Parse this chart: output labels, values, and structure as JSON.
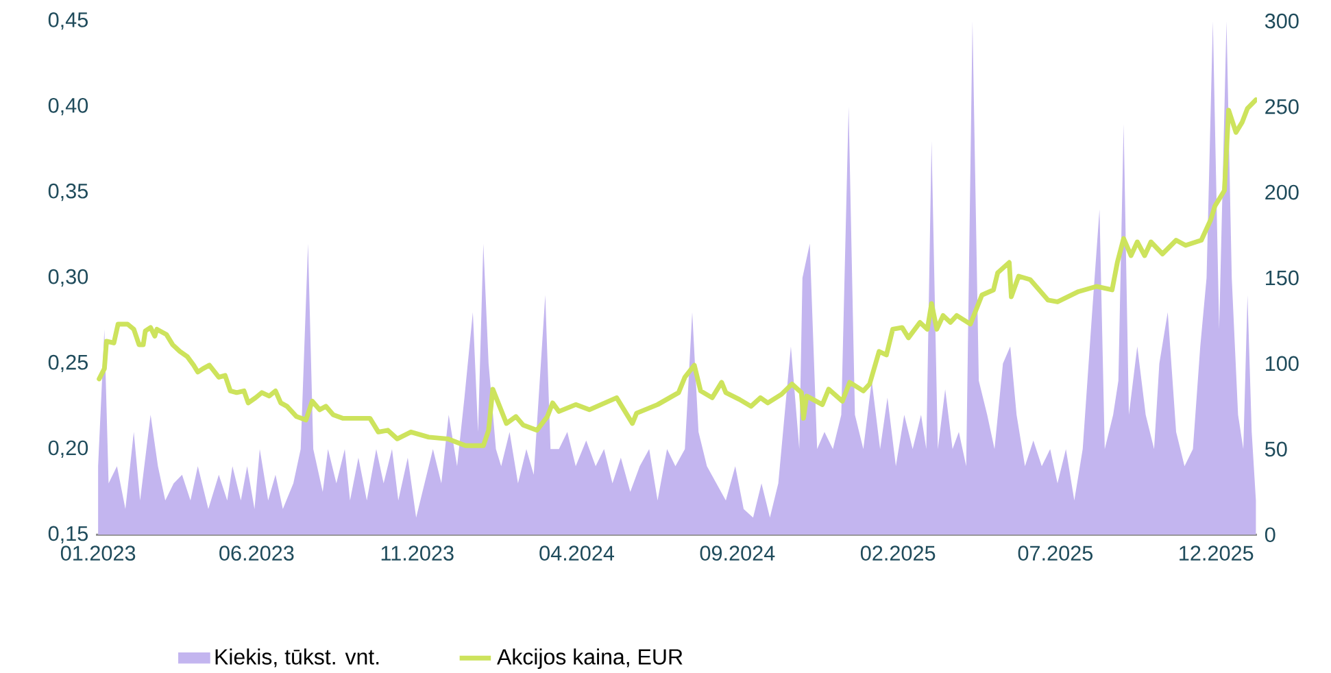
{
  "chart_data": {
    "type": "line",
    "xlim": [
      "2022-12-30",
      "2026-01-09"
    ],
    "xticks": [
      {
        "value": "2023-01-01",
        "label": "01.2023"
      },
      {
        "value": "2023-06-01",
        "label": "06.2023"
      },
      {
        "value": "2023-11-01",
        "label": "11.2023"
      },
      {
        "value": "2024-04-01",
        "label": "04.2024"
      },
      {
        "value": "2024-09-01",
        "label": "09.2024"
      },
      {
        "value": "2025-02-01",
        "label": "02.2025"
      },
      {
        "value": "2025-07-01",
        "label": "07.2025"
      },
      {
        "value": "2025-12-01",
        "label": "12.2025"
      }
    ],
    "ylim": [
      0.15,
      0.45
    ],
    "yticks": [
      {
        "value": 0.15,
        "label": "0,15"
      },
      {
        "value": 0.2,
        "label": "0,20"
      },
      {
        "value": 0.25,
        "label": "0,25"
      },
      {
        "value": 0.3,
        "label": "0,30"
      },
      {
        "value": 0.35,
        "label": "0,35"
      },
      {
        "value": 0.4,
        "label": "0,40"
      },
      {
        "value": 0.45,
        "label": "0,45"
      }
    ],
    "y2lim": [
      0,
      300
    ],
    "y2ticks": [
      0,
      50,
      100,
      150,
      200,
      250,
      300
    ],
    "legend": "bottom",
    "series": [
      {
        "name": "Kiekis, tūkst. vnt.",
        "type": "area",
        "axis": "y",
        "color": "#c3b5ef",
        "x": [
          "2023-01-01",
          "2023-01-07",
          "2023-01-11",
          "2023-01-19",
          "2023-01-27",
          "2023-02-04",
          "2023-02-10",
          "2023-02-20",
          "2023-02-27",
          "2023-03-06",
          "2023-03-14",
          "2023-03-22",
          "2023-03-30",
          "2023-04-06",
          "2023-04-16",
          "2023-04-26",
          "2023-05-04",
          "2023-05-09",
          "2023-05-17",
          "2023-05-23",
          "2023-05-30",
          "2023-06-04",
          "2023-06-12",
          "2023-06-19",
          "2023-06-26",
          "2023-07-06",
          "2023-07-13",
          "2023-07-20",
          "2023-07-25",
          "2023-08-03",
          "2023-08-08",
          "2023-08-16",
          "2023-08-24",
          "2023-08-29",
          "2023-09-06",
          "2023-09-14",
          "2023-09-23",
          "2023-09-30",
          "2023-10-08",
          "2023-10-14",
          "2023-10-23",
          "2023-10-31",
          "2023-11-08",
          "2023-11-16",
          "2023-11-24",
          "2023-12-01",
          "2023-12-09",
          "2023-12-16",
          "2023-12-24",
          "2023-12-29",
          "2024-01-03",
          "2024-01-08",
          "2024-01-15",
          "2024-01-20",
          "2024-01-28",
          "2024-02-05",
          "2024-02-13",
          "2024-02-20",
          "2024-03-02",
          "2024-03-07",
          "2024-03-15",
          "2024-03-23",
          "2024-03-31",
          "2024-04-10",
          "2024-04-19",
          "2024-04-27",
          "2024-05-05",
          "2024-05-13",
          "2024-05-22",
          "2024-05-31",
          "2024-06-09",
          "2024-06-17",
          "2024-06-26",
          "2024-07-04",
          "2024-07-13",
          "2024-07-20",
          "2024-07-26",
          "2024-08-03",
          "2024-08-12",
          "2024-08-21",
          "2024-08-30",
          "2024-09-07",
          "2024-09-16",
          "2024-09-24",
          "2024-10-02",
          "2024-10-10",
          "2024-10-22",
          "2024-10-30",
          "2024-11-02",
          "2024-11-09",
          "2024-11-16",
          "2024-11-23",
          "2024-12-01",
          "2024-12-09",
          "2024-12-16",
          "2024-12-22",
          "2024-12-30",
          "2025-01-07",
          "2025-01-15",
          "2025-01-22",
          "2025-01-30",
          "2025-02-07",
          "2025-02-15",
          "2025-02-23",
          "2025-02-28",
          "2025-03-05",
          "2025-03-11",
          "2025-03-18",
          "2025-03-25",
          "2025-03-31",
          "2025-04-07",
          "2025-04-13",
          "2025-04-19",
          "2025-04-27",
          "2025-05-04",
          "2025-05-12",
          "2025-05-19",
          "2025-05-25",
          "2025-06-02",
          "2025-06-10",
          "2025-06-18",
          "2025-06-26",
          "2025-07-03",
          "2025-07-11",
          "2025-07-19",
          "2025-07-27",
          "2025-08-05",
          "2025-08-12",
          "2025-08-17",
          "2025-08-25",
          "2025-08-30",
          "2025-09-04",
          "2025-09-09",
          "2025-09-17",
          "2025-09-25",
          "2025-10-03",
          "2025-10-08",
          "2025-10-16",
          "2025-10-24",
          "2025-11-01",
          "2025-11-09",
          "2025-11-16",
          "2025-11-22",
          "2025-11-28",
          "2025-12-04",
          "2025-12-11",
          "2025-12-16",
          "2025-12-22",
          "2025-12-27",
          "2025-12-31",
          "2026-01-04",
          "2026-01-08"
        ],
        "values": [
          0.19,
          0.27,
          0.18,
          0.19,
          0.165,
          0.21,
          0.17,
          0.22,
          0.19,
          0.17,
          0.18,
          0.185,
          0.17,
          0.19,
          0.165,
          0.185,
          0.17,
          0.19,
          0.17,
          0.19,
          0.165,
          0.2,
          0.17,
          0.185,
          0.165,
          0.18,
          0.2,
          0.32,
          0.2,
          0.175,
          0.2,
          0.18,
          0.2,
          0.17,
          0.195,
          0.17,
          0.2,
          0.18,
          0.2,
          0.17,
          0.195,
          0.16,
          0.18,
          0.2,
          0.18,
          0.22,
          0.19,
          0.23,
          0.28,
          0.21,
          0.32,
          0.25,
          0.2,
          0.19,
          0.21,
          0.18,
          0.2,
          0.185,
          0.29,
          0.2,
          0.2,
          0.21,
          0.19,
          0.205,
          0.19,
          0.2,
          0.18,
          0.195,
          0.175,
          0.19,
          0.2,
          0.17,
          0.2,
          0.19,
          0.2,
          0.28,
          0.21,
          0.19,
          0.18,
          0.17,
          0.19,
          0.165,
          0.16,
          0.18,
          0.16,
          0.18,
          0.26,
          0.2,
          0.3,
          0.32,
          0.2,
          0.21,
          0.2,
          0.22,
          0.4,
          0.22,
          0.2,
          0.24,
          0.2,
          0.23,
          0.19,
          0.22,
          0.2,
          0.22,
          0.2,
          0.38,
          0.2,
          0.235,
          0.2,
          0.21,
          0.19,
          0.45,
          0.24,
          0.22,
          0.2,
          0.25,
          0.26,
          0.22,
          0.19,
          0.205,
          0.19,
          0.2,
          0.18,
          0.2,
          0.17,
          0.2,
          0.28,
          0.34,
          0.2,
          0.22,
          0.24,
          0.39,
          0.22,
          0.26,
          0.22,
          0.2,
          0.25,
          0.28,
          0.21,
          0.19,
          0.2,
          0.26,
          0.3,
          0.45,
          0.27,
          0.45,
          0.3,
          0.22,
          0.2,
          0.29,
          0.21,
          0.17
        ]
      },
      {
        "name": "Akcijos kaina, EUR",
        "axis": "y2",
        "color": "#cde35c",
        "x": [
          "2023-01-02",
          "2023-01-07",
          "2023-01-09",
          "2023-01-16",
          "2023-01-20",
          "2023-01-29",
          "2023-02-04",
          "2023-02-09",
          "2023-02-13",
          "2023-02-15",
          "2023-02-20",
          "2023-02-24",
          "2023-02-26",
          "2023-03-07",
          "2023-03-13",
          "2023-03-20",
          "2023-03-27",
          "2023-04-02",
          "2023-04-06",
          "2023-04-11",
          "2023-04-17",
          "2023-04-26",
          "2023-05-02",
          "2023-05-07",
          "2023-05-13",
          "2023-05-20",
          "2023-05-24",
          "2023-05-31",
          "2023-06-06",
          "2023-06-13",
          "2023-06-19",
          "2023-06-24",
          "2023-06-30",
          "2023-07-09",
          "2023-07-18",
          "2023-07-24",
          "2023-07-31",
          "2023-08-06",
          "2023-08-13",
          "2023-08-22",
          "2023-09-17",
          "2023-09-25",
          "2023-10-04",
          "2023-10-13",
          "2023-10-26",
          "2023-11-12",
          "2023-11-30",
          "2023-12-17",
          "2024-01-03",
          "2024-01-08",
          "2024-01-12",
          "2024-01-25",
          "2024-02-03",
          "2024-02-10",
          "2024-02-23",
          "2024-03-04",
          "2024-03-09",
          "2024-03-15",
          "2024-03-31",
          "2024-04-13",
          "2024-05-09",
          "2024-05-18",
          "2024-05-24",
          "2024-05-28",
          "2024-06-17",
          "2024-07-07",
          "2024-07-13",
          "2024-07-22",
          "2024-07-28",
          "2024-08-08",
          "2024-08-17",
          "2024-08-21",
          "2024-09-03",
          "2024-09-14",
          "2024-09-23",
          "2024-09-30",
          "2024-10-13",
          "2024-10-23",
          "2024-11-01",
          "2024-11-03",
          "2024-11-06",
          "2024-11-21",
          "2024-11-27",
          "2024-12-10",
          "2024-12-17",
          "2024-12-30",
          "2025-01-05",
          "2025-01-14",
          "2025-01-21",
          "2025-01-27",
          "2025-02-05",
          "2025-02-11",
          "2025-02-22",
          "2025-03-01",
          "2025-03-05",
          "2025-03-10",
          "2025-03-16",
          "2025-03-23",
          "2025-03-29",
          "2025-04-11",
          "2025-04-22",
          "2025-05-03",
          "2025-05-07",
          "2025-05-18",
          "2025-05-20",
          "2025-05-27",
          "2025-06-07",
          "2025-06-24",
          "2025-07-03",
          "2025-07-23",
          "2025-08-09",
          "2025-08-24",
          "2025-08-29",
          "2025-09-04",
          "2025-09-11",
          "2025-09-17",
          "2025-09-24",
          "2025-09-30",
          "2025-10-11",
          "2025-10-24",
          "2025-11-02",
          "2025-11-17",
          "2025-11-26",
          "2025-11-30",
          "2025-12-09",
          "2025-12-13",
          "2025-12-20",
          "2025-12-26",
          "2025-12-31",
          "2026-01-08"
        ],
        "values": [
          91,
          97,
          113,
          112,
          123,
          123,
          120,
          111,
          111,
          119,
          121,
          116,
          120,
          117,
          111,
          107,
          104,
          99,
          95,
          97,
          99,
          92,
          93,
          84,
          83,
          84,
          77,
          80,
          83,
          81,
          84,
          77,
          75,
          69,
          67,
          78,
          73,
          75,
          70,
          68,
          68,
          60,
          61,
          56,
          60,
          57,
          56,
          52,
          52,
          61,
          85,
          65,
          69,
          64,
          61,
          69,
          77,
          72,
          76,
          73,
          80,
          71,
          65,
          71,
          76,
          83,
          92,
          99,
          84,
          80,
          89,
          83,
          79,
          75,
          80,
          77,
          82,
          88,
          83,
          68,
          81,
          76,
          85,
          78,
          89,
          84,
          88,
          107,
          105,
          120,
          121,
          115,
          124,
          120,
          135,
          120,
          128,
          124,
          128,
          123,
          140,
          143,
          153,
          159,
          139,
          151,
          149,
          137,
          136,
          142,
          145,
          143,
          159,
          173,
          163,
          171,
          163,
          171,
          164,
          172,
          169,
          172,
          184,
          192,
          201,
          248,
          235,
          241,
          249,
          254
        ]
      }
    ]
  }
}
